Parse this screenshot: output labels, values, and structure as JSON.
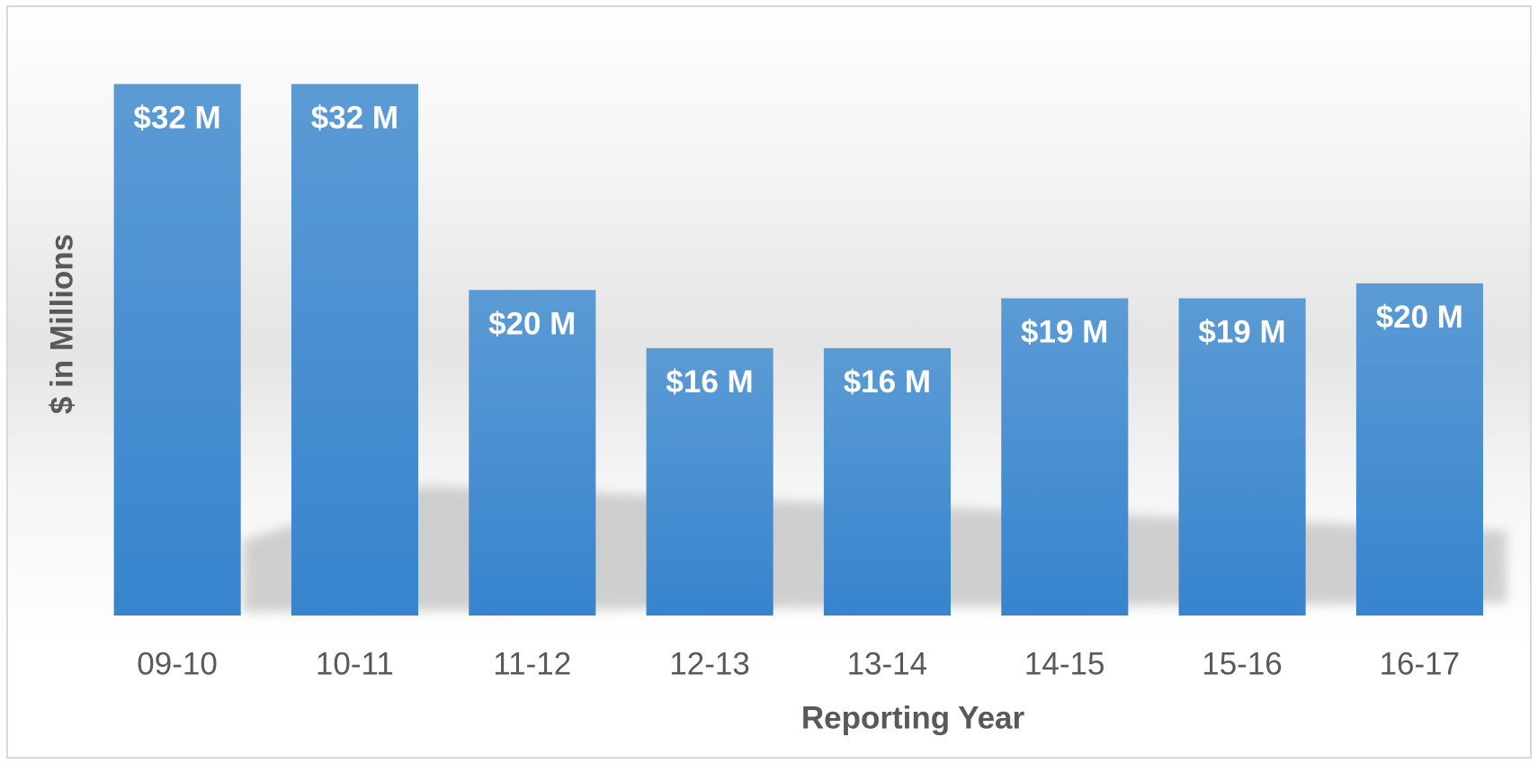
{
  "chart_data": {
    "type": "bar",
    "x_label": "Reporting Year",
    "y_label": "$ in Millions",
    "categories": [
      "09-10",
      "10-11",
      "11-12",
      "12-13",
      "13-14",
      "14-15",
      "15-16",
      "16-17"
    ],
    "values": [
      32,
      32,
      19.6,
      16.1,
      16.1,
      19.1,
      19.1,
      20
    ],
    "value_labels": [
      "$32 M",
      "$32 M",
      "$20 M",
      "$16 M",
      "$16 M",
      "$19 M",
      "$19 M",
      "$20 M"
    ],
    "color": "#4a8fd3",
    "ylim": [
      0,
      35
    ]
  }
}
